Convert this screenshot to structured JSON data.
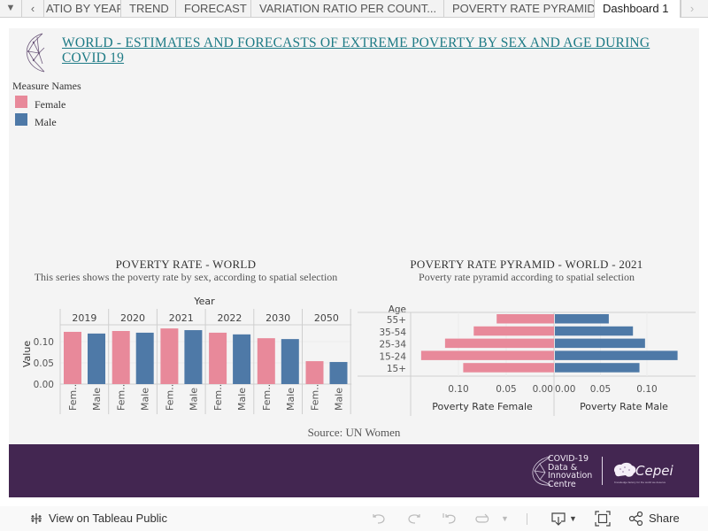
{
  "tabs": {
    "menu_icon": "caret-down-icon",
    "prev_icon": "chevron-left-icon",
    "next_icon": "chevron-right-icon",
    "items": [
      {
        "label": "ATIO BY YEAR",
        "active": false
      },
      {
        "label": "TREND",
        "active": false
      },
      {
        "label": "FORECAST",
        "active": false
      },
      {
        "label": "VARIATION RATIO PER COUNT...",
        "active": false
      },
      {
        "label": "POVERTY RATE PYRAMID",
        "active": false
      },
      {
        "label": "Dashboard 1",
        "active": true
      }
    ]
  },
  "dashboard": {
    "title": " WORLD  -  ESTIMATES AND FORECASTS OF EXTREME POVERTY BY SEX AND AGE DURING  COVID 19",
    "legend": {
      "title": "Measure Names",
      "items": [
        {
          "label": "Female",
          "color": "#e8899a"
        },
        {
          "label": "Male",
          "color": "#4e79a7"
        }
      ]
    },
    "source": "Source:  UN  Women"
  },
  "colors": {
    "female": "#e8899a",
    "male": "#4e79a7",
    "title_link": "#1d7a85",
    "footer_bg": "#432651"
  },
  "chart_data": [
    {
      "type": "bar",
      "title": "POVERTY RATE - WORLD",
      "subtitle": "This series shows the poverty rate by sex, according to spatial selection",
      "column_header": "Year",
      "categories": [
        "2019",
        "2020",
        "2021",
        "2022",
        "2030",
        "2050"
      ],
      "sub_categories": [
        "Fem..",
        "Male"
      ],
      "series": [
        {
          "name": "Female",
          "values": [
            0.123,
            0.125,
            0.131,
            0.121,
            0.108,
            0.054
          ]
        },
        {
          "name": "Male",
          "values": [
            0.119,
            0.121,
            0.127,
            0.117,
            0.106,
            0.052
          ]
        }
      ],
      "ylabel": "Value",
      "yticks": [
        "0.00",
        "0.05",
        "0.10"
      ],
      "ylim": [
        0,
        0.13
      ],
      "grid": true,
      "legend": "top-left"
    },
    {
      "type": "bar",
      "orientation": "horizontal-pyramid",
      "title": "POVERTY RATE PYRAMID -   WORLD - 2021",
      "subtitle": "Poverty rate pyramid according to spatial selection",
      "row_header": "Age",
      "categories": [
        "55+",
        "35-54",
        "25-34",
        "15-24",
        "15+"
      ],
      "series": [
        {
          "name": "Poverty Rate Female",
          "values": [
            0.06,
            0.084,
            0.114,
            0.139,
            0.095
          ]
        },
        {
          "name": "Poverty Rate Male",
          "values": [
            0.058,
            0.084,
            0.097,
            0.132,
            0.091
          ]
        }
      ],
      "female_ticks": [
        "0.10",
        "0.05",
        "0.00"
      ],
      "male_ticks": [
        "0.00",
        "0.05",
        "0.10"
      ],
      "xlabel_female": "Poverty Rate Female",
      "xlabel_male": "Poverty Rate Male"
    }
  ],
  "footer": {
    "brand1_lines": [
      "COVID-19",
      "Data &",
      "Innovation",
      "Centre"
    ],
    "brand2": "Cepei",
    "brand2_tagline": "Knowledge factory for the world we deserve"
  },
  "bottombar": {
    "view_label": "View on Tableau Public",
    "share_label": "Share",
    "icons": [
      "undo-icon",
      "redo-icon",
      "revert-icon",
      "refresh-icon",
      "download-icon",
      "fullscreen-icon",
      "share-icon"
    ]
  }
}
